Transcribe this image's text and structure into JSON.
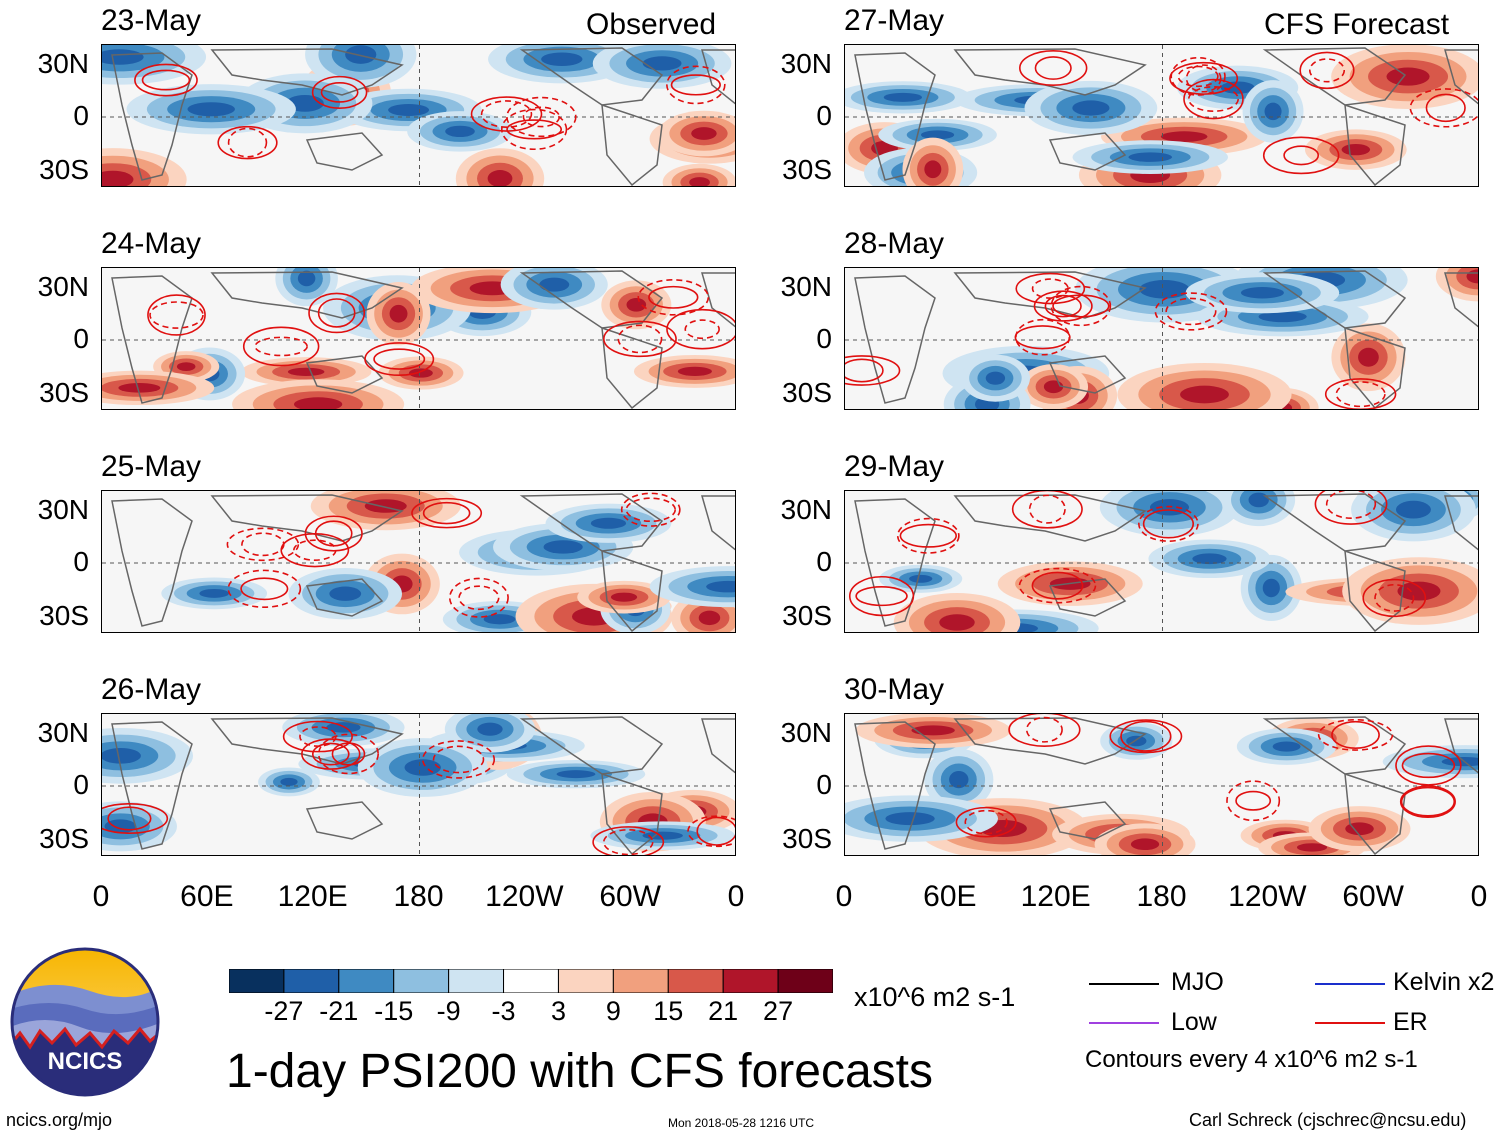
{
  "header": {
    "left_label": "Observed",
    "right_label": "CFS Forecast"
  },
  "columns": [
    {
      "dates": [
        "23-May",
        "24-May",
        "25-May",
        "26-May"
      ]
    },
    {
      "dates": [
        "27-May",
        "28-May",
        "29-May",
        "30-May"
      ]
    }
  ],
  "axes": {
    "y_ticks": [
      "30N",
      "0",
      "30S"
    ],
    "x_ticks": [
      "0",
      "60E",
      "120E",
      "180",
      "120W",
      "60W",
      "0"
    ]
  },
  "colorbar": {
    "ticks": [
      "-27",
      "-21",
      "-15",
      "-9",
      "-3",
      "3",
      "9",
      "15",
      "21",
      "27"
    ],
    "units": "x10^6 m2 s-1",
    "colors": [
      "#08305e",
      "#1f5fa8",
      "#3f8ac2",
      "#8ebfe0",
      "#cfe4f2",
      "#ffffff",
      "#fbd4c0",
      "#f1a07e",
      "#d8584a",
      "#b0152a",
      "#6e0018"
    ]
  },
  "legend": {
    "items": [
      {
        "label": "MJO",
        "color": "#000000"
      },
      {
        "label": "Kelvin x2",
        "color": "#1a2fcc"
      },
      {
        "label": "Low",
        "color": "#a040e0"
      },
      {
        "label": "ER",
        "color": "#e01010"
      }
    ],
    "contour_note": "Contours every 4 x10^6 m2 s-1"
  },
  "title": "1-day PSI200 with CFS forecasts",
  "footer": {
    "logo_text": "NCICS",
    "url": "ncics.org/mjo",
    "timestamp": "Mon 2018-05-28 1216 UTC",
    "credit": "Carl Schreck (cjschrec@ncsu.edu)"
  },
  "chart_data": {
    "type": "heatmap",
    "variable": "200-hPa streamfunction anomaly (PSI200)",
    "units": "x10^6 m2 s-1",
    "color_levels": [
      -27,
      -21,
      -15,
      -9,
      -3,
      3,
      9,
      15,
      21,
      27
    ],
    "contour_interval": 4,
    "x_range": [
      "0",
      "0"
    ],
    "y_range": [
      "40S",
      "40N"
    ],
    "panels": [
      {
        "date": "23-May",
        "source": "Observed"
      },
      {
        "date": "24-May",
        "source": "Observed"
      },
      {
        "date": "25-May",
        "source": "Observed"
      },
      {
        "date": "26-May",
        "source": "Observed"
      },
      {
        "date": "27-May",
        "source": "CFS Forecast"
      },
      {
        "date": "28-May",
        "source": "CFS Forecast"
      },
      {
        "date": "29-May",
        "source": "CFS Forecast"
      },
      {
        "date": "30-May",
        "source": "CFS Forecast"
      }
    ]
  }
}
